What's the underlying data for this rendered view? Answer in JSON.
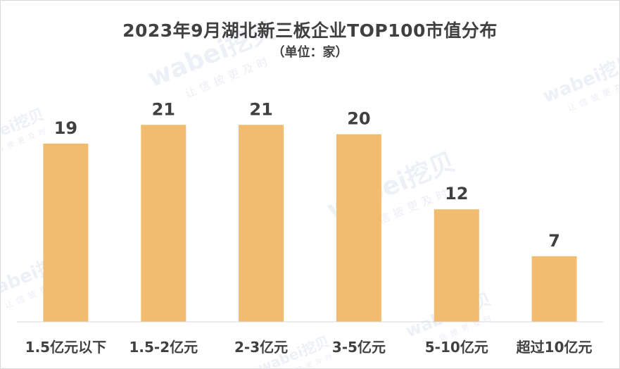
{
  "chart_data": {
    "type": "bar",
    "title": "2023年9月湖北新三板企业TOP100市值分布",
    "subtitle": "（单位：家）",
    "categories": [
      "1.5亿元以下",
      "1.5-2亿元",
      "2-3亿元",
      "3-5亿元",
      "5-10亿元",
      "超过10亿元"
    ],
    "values": [
      19,
      21,
      21,
      20,
      12,
      7
    ],
    "xlabel": "",
    "ylabel": "",
    "ylim": [
      0,
      25
    ],
    "grid": false,
    "legend": "none",
    "bar_color": "#F2BC70",
    "axis_color": "#d9d9d9",
    "label_color": "#404040"
  },
  "watermark": {
    "brand": "wabei挖贝",
    "tagline": "让信披更及时"
  }
}
